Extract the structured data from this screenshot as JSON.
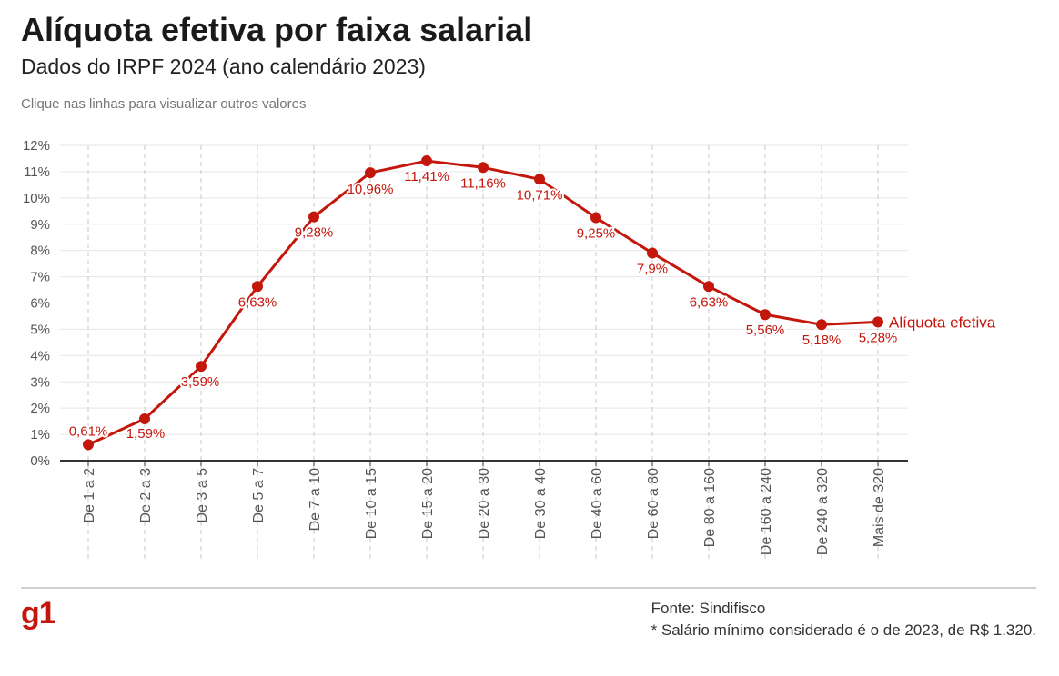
{
  "header": {
    "title": "Alíquota efetiva por faixa salarial",
    "subtitle": "Dados do IRPF 2024 (ano calendário 2023)",
    "hint": "Clique nas linhas para visualizar outros valores"
  },
  "footer": {
    "logo": "g1",
    "source": "Fonte: Sindifisco",
    "note": "* Salário mínimo considerado é o de 2023, de R$ 1.320."
  },
  "colors": {
    "series": "#c4170c",
    "logo": "#c4170c",
    "grid": "#e6e6e6",
    "tick_text": "#555555"
  },
  "chart_data": {
    "type": "line",
    "categories": [
      "De 1 a 2",
      "De 2 a 3",
      "De 3 a 5",
      "De 5 a 7",
      "De 7 a 10",
      "De 10 a 15",
      "De 15 a 20",
      "De 20 a 30",
      "De 30 a 40",
      "De 40 a 60",
      "De 60 a 80",
      "De 80 a 160",
      "De 160 a 240",
      "De 240 a 320",
      "Mais de 320"
    ],
    "series": [
      {
        "name": "Alíquota efetiva",
        "values": [
          0.61,
          1.59,
          3.59,
          6.63,
          9.28,
          10.96,
          11.41,
          11.16,
          10.71,
          9.25,
          7.9,
          6.63,
          5.56,
          5.18,
          5.28
        ],
        "labels": [
          "0,61%",
          "1,59%",
          "3,59%",
          "6,63%",
          "9,28%",
          "10,96%",
          "11,41%",
          "11,16%",
          "10,71%",
          "9,25%",
          "7,9%",
          "6,63%",
          "5,56%",
          "5,18%",
          "5,28%"
        ]
      }
    ],
    "yticks": [
      "0%",
      "1%",
      "2%",
      "3%",
      "4%",
      "5%",
      "6%",
      "7%",
      "8%",
      "9%",
      "10%",
      "11%",
      "12%"
    ],
    "ylim": [
      0,
      12
    ],
    "grid": true,
    "legend": "end-of-line label"
  }
}
